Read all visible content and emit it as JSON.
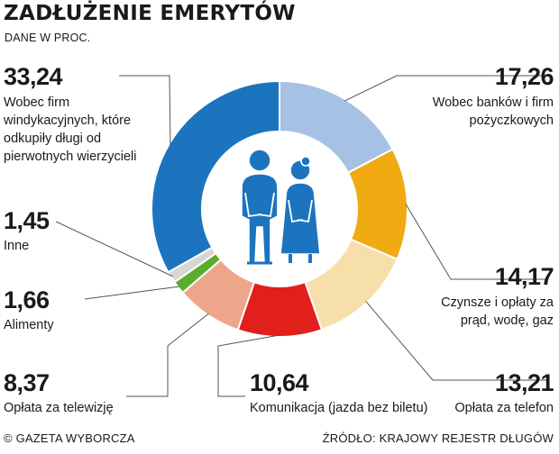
{
  "title": "ZADŁUŻENIE EMERYTÓW",
  "subtitle": "DANE W PROC.",
  "footer": {
    "left": "© GAZETA WYBORCZA",
    "right": "ŹRÓDŁO: KRAJOWY REJESTR DŁUGÓW"
  },
  "center_icon": "elderly-couple-icon",
  "chart_data": {
    "type": "pie",
    "variant": "donut",
    "unit": "%",
    "slices": [
      {
        "value_label": "17,26",
        "value": 17.26,
        "label": "Wobec banków i firm pożyczkowych",
        "color": "#a5c1e3"
      },
      {
        "value_label": "14,17",
        "value": 14.17,
        "label": "Czynsze i opłaty za prąd, wodę, gaz",
        "color": "#f0aa12"
      },
      {
        "value_label": "13,21",
        "value": 13.21,
        "label": "Opłata za telefon",
        "color": "#f7dfab"
      },
      {
        "value_label": "10,64",
        "value": 10.64,
        "label": "Komunikacja (jazda bez biletu)",
        "color": "#f7dfab"
      },
      {
        "value_label": "8,37",
        "value": 8.37,
        "label": "Opłata za telewizję",
        "color": "#e11f1b"
      },
      {
        "value_label": "1,66",
        "value": 1.66,
        "label": "Alimenty",
        "color": "#eea68b"
      },
      {
        "value_label": "1,45",
        "value": 1.45,
        "label": "Inne",
        "color": "#5aac2c"
      },
      {
        "value_label": "33,24",
        "value": 33.24,
        "label": "Wobec firm windykacyjnych, które odkupiły długi od pierwotnych wierzycieli",
        "color": "#d6d6d6"
      }
    ],
    "arc_colors_clockwise_from_top": [
      "#a5c1e3",
      "#f0aa12",
      "#f7dfab",
      "#e11f1b",
      "#eea68b",
      "#5aac2c",
      "#d6d6d6",
      "#1d74be"
    ],
    "accent_color": "#1d74be"
  }
}
